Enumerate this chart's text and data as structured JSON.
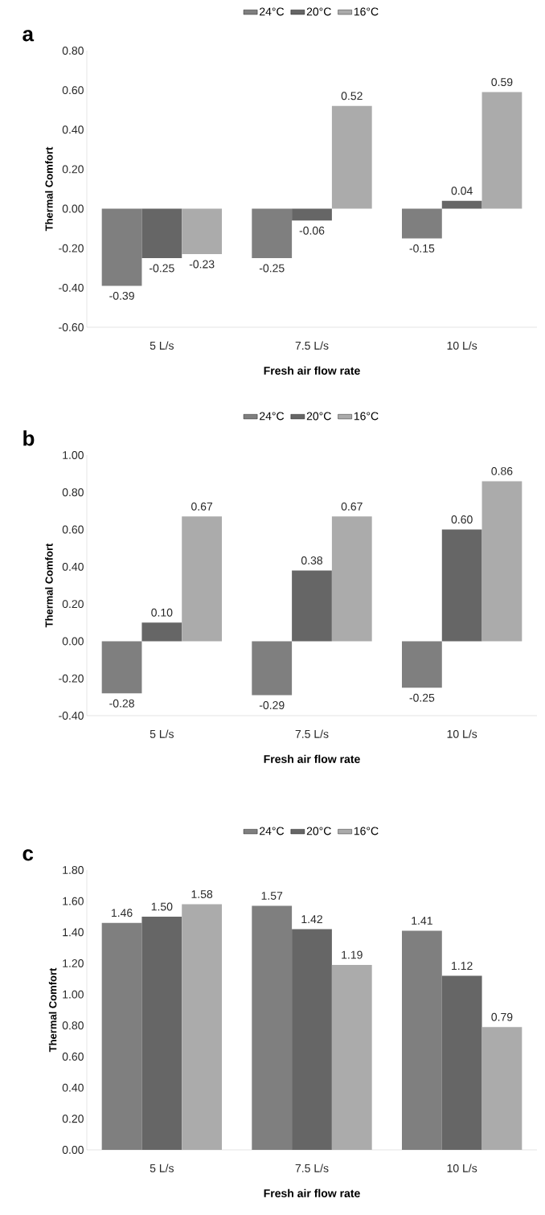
{
  "chart_data": [
    {
      "type": "bar",
      "title": "a",
      "xlabel": "Fresh air flow rate",
      "ylabel": "Thermal Comfort",
      "categories": [
        "5 L/s",
        "7.5 L/s",
        "10 L/s"
      ],
      "legend": "top",
      "ylim": [
        -0.6,
        0.8
      ],
      "yticks": [
        {
          "value": -0.6,
          "label": "-0.60"
        },
        {
          "value": -0.4,
          "label": "-0.40"
        },
        {
          "value": -0.2,
          "label": "-0.20"
        },
        {
          "value": 0,
          "label": "0.00"
        },
        {
          "value": 0.2,
          "label": "0.20"
        },
        {
          "value": 0.4,
          "label": "0.40"
        },
        {
          "value": 0.6,
          "label": "0.60"
        },
        {
          "value": 0.8,
          "label": "0.80"
        }
      ],
      "series": [
        {
          "name": "24°C",
          "color": "#7f7f7f",
          "values": [
            -0.39,
            -0.25,
            -0.15
          ],
          "value_labels": [
            "-0.39",
            "-0.25",
            "-0.15"
          ]
        },
        {
          "name": "20°C",
          "color": "#666666",
          "values": [
            -0.25,
            -0.06,
            0.04
          ],
          "value_labels": [
            "-0.25",
            "-0.06",
            "0.04"
          ]
        },
        {
          "name": "16°C",
          "color": "#ababab",
          "values": [
            -0.23,
            0.52,
            0.59
          ],
          "value_labels": [
            "-0.23",
            "0.52",
            "0.59"
          ]
        }
      ]
    },
    {
      "type": "bar",
      "title": "b",
      "xlabel": "Fresh air flow rate",
      "ylabel": "Thermal Comfort",
      "categories": [
        "5 L/s",
        "7.5 L/s",
        "10 L/s"
      ],
      "legend": "top",
      "ylim": [
        -0.4,
        1.0
      ],
      "yticks": [
        {
          "value": -0.4,
          "label": "-0.40"
        },
        {
          "value": -0.2,
          "label": "-0.20"
        },
        {
          "value": 0,
          "label": "0.00"
        },
        {
          "value": 0.2,
          "label": "0.20"
        },
        {
          "value": 0.4,
          "label": "0.40"
        },
        {
          "value": 0.6,
          "label": "0.60"
        },
        {
          "value": 0.8,
          "label": "0.80"
        },
        {
          "value": 1.0,
          "label": "1.00"
        }
      ],
      "series": [
        {
          "name": "24°C",
          "color": "#7f7f7f",
          "values": [
            -0.28,
            -0.29,
            -0.25
          ],
          "value_labels": [
            "-0.28",
            "-0.29",
            "-0.25"
          ]
        },
        {
          "name": "20°C",
          "color": "#666666",
          "values": [
            0.1,
            0.38,
            0.6
          ],
          "value_labels": [
            "0.10",
            "0.38",
            "0.60"
          ]
        },
        {
          "name": "16°C",
          "color": "#ababab",
          "values": [
            0.67,
            0.67,
            0.86
          ],
          "value_labels": [
            "0.67",
            "0.67",
            "0.86"
          ]
        }
      ]
    },
    {
      "type": "bar",
      "title": "c",
      "xlabel": "Fresh air flow rate",
      "ylabel": "Thermal Comfort",
      "categories": [
        "5 L/s",
        "7.5 L/s",
        "10 L/s"
      ],
      "legend": "top",
      "ylim": [
        0,
        1.8
      ],
      "yticks": [
        {
          "value": 0,
          "label": "0.00"
        },
        {
          "value": 0.2,
          "label": "0.20"
        },
        {
          "value": 0.4,
          "label": "0.40"
        },
        {
          "value": 0.6,
          "label": "0.60"
        },
        {
          "value": 0.8,
          "label": "0.80"
        },
        {
          "value": 1.0,
          "label": "1.00"
        },
        {
          "value": 1.2,
          "label": "1.20"
        },
        {
          "value": 1.4,
          "label": "1.40"
        },
        {
          "value": 1.6,
          "label": "1.60"
        },
        {
          "value": 1.8,
          "label": "1.80"
        }
      ],
      "series": [
        {
          "name": "24°C",
          "color": "#7f7f7f",
          "values": [
            1.46,
            1.57,
            1.41
          ],
          "value_labels": [
            "1.46",
            "1.57",
            "1.41"
          ]
        },
        {
          "name": "20°C",
          "color": "#666666",
          "values": [
            1.5,
            1.42,
            1.12
          ],
          "value_labels": [
            "1.50",
            "1.42",
            "1.12"
          ]
        },
        {
          "name": "16°C",
          "color": "#ababab",
          "values": [
            1.58,
            1.19,
            0.79
          ],
          "value_labels": [
            "1.58",
            "1.19",
            "0.79"
          ]
        }
      ]
    }
  ]
}
